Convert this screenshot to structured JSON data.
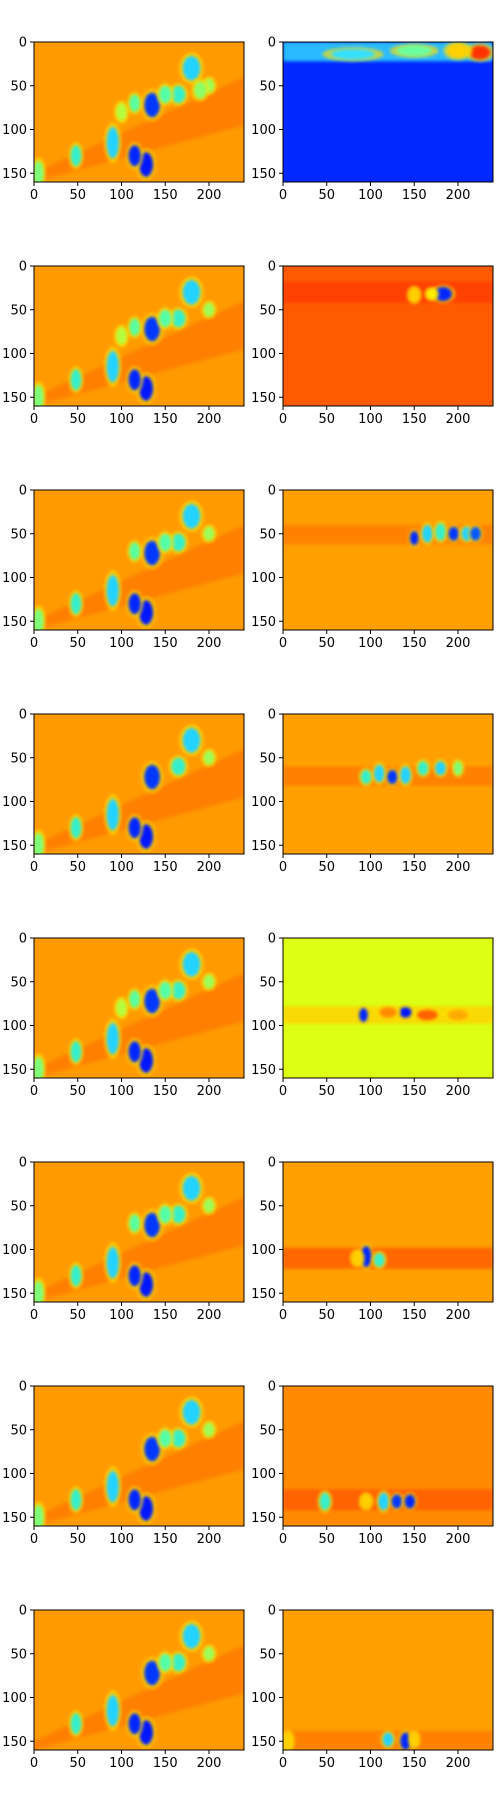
{
  "figure": {
    "layout": "8 rows x 2 columns of heatmap subplots",
    "colormap": "jet",
    "note_colors": {
      "background_orange": "#ff9a00",
      "deep_orange": "#ff5a00",
      "yellow_green": "#dcff14",
      "deep_blue": "#0028ff"
    }
  },
  "chart_data": [
    {
      "type": "heatmap",
      "panel": "r1c1",
      "xlim": [
        0,
        240
      ],
      "ylim": [
        160,
        0
      ],
      "xticks": [
        0,
        50,
        100,
        150,
        200
      ],
      "yticks": [
        0,
        50,
        100,
        150
      ],
      "bg": "#ff9a00",
      "blobs": [
        [
          180,
          30,
          10,
          14,
          "#23d3ff"
        ],
        [
          135,
          72,
          9,
          14,
          "#0038ff"
        ],
        [
          128,
          140,
          8,
          14,
          "#0018ff"
        ],
        [
          115,
          130,
          7,
          12,
          "#0028ff"
        ],
        [
          90,
          115,
          7,
          18,
          "#23d3ff"
        ],
        [
          48,
          130,
          6,
          12,
          "#35f0cc"
        ],
        [
          5,
          150,
          6,
          14,
          "#7dff7a"
        ],
        [
          165,
          60,
          8,
          10,
          "#35f0cc"
        ],
        [
          150,
          60,
          7,
          10,
          "#55ffa8"
        ],
        [
          200,
          50,
          6,
          8,
          "#9bff5a"
        ],
        [
          115,
          70,
          6,
          10,
          "#56ffa0"
        ],
        [
          100,
          80,
          6,
          10,
          "#b6ff40"
        ],
        [
          190,
          55,
          7,
          10,
          "#8aff6a"
        ]
      ]
    },
    {
      "type": "heatmap",
      "panel": "r1c2",
      "xlim": [
        0,
        240
      ],
      "ylim": [
        160,
        0
      ],
      "xticks": [
        0,
        50,
        100,
        150,
        200
      ],
      "yticks": [
        0,
        50,
        100,
        150
      ],
      "bg": "#0028ff",
      "band": {
        "y0": 0,
        "y1": 22,
        "color": "#35e0ff"
      },
      "blobs": [
        [
          225,
          12,
          12,
          8,
          "#ff3000"
        ],
        [
          200,
          10,
          12,
          8,
          "#ffd000"
        ],
        [
          150,
          10,
          20,
          6,
          "#6affa0"
        ],
        [
          80,
          14,
          25,
          6,
          "#35e0ff"
        ]
      ]
    },
    {
      "type": "heatmap",
      "panel": "r2c1",
      "xlim": [
        0,
        240
      ],
      "ylim": [
        160,
        0
      ],
      "xticks": [
        0,
        50,
        100,
        150,
        200
      ],
      "yticks": [
        0,
        50,
        100,
        150
      ],
      "bg": "#ff9a00",
      "blobs": [
        [
          180,
          30,
          10,
          14,
          "#23d3ff"
        ],
        [
          135,
          72,
          9,
          14,
          "#0038ff"
        ],
        [
          128,
          140,
          8,
          14,
          "#0018ff"
        ],
        [
          115,
          130,
          7,
          12,
          "#0028ff"
        ],
        [
          90,
          115,
          7,
          18,
          "#23d3ff"
        ],
        [
          48,
          130,
          6,
          12,
          "#35f0cc"
        ],
        [
          5,
          150,
          6,
          14,
          "#7dff7a"
        ],
        [
          165,
          60,
          8,
          10,
          "#35f0cc"
        ],
        [
          150,
          60,
          7,
          10,
          "#55ffa8"
        ],
        [
          200,
          50,
          6,
          8,
          "#9bff5a"
        ],
        [
          115,
          70,
          6,
          10,
          "#56ffa0"
        ],
        [
          100,
          80,
          6,
          10,
          "#b6ff40"
        ]
      ]
    },
    {
      "type": "heatmap",
      "panel": "r2c2",
      "xlim": [
        0,
        240
      ],
      "ylim": [
        160,
        0
      ],
      "xticks": [
        0,
        50,
        100,
        150,
        200
      ],
      "yticks": [
        0,
        50,
        100,
        150
      ],
      "bg": "#ff5a00",
      "band": {
        "y0": 18,
        "y1": 42,
        "color": "#ff3a00"
      },
      "blobs": [
        [
          183,
          32,
          10,
          8,
          "#0028ff"
        ],
        [
          150,
          33,
          6,
          8,
          "#ffd000"
        ],
        [
          170,
          32,
          6,
          6,
          "#ffef00"
        ]
      ]
    },
    {
      "type": "heatmap",
      "panel": "r3c1",
      "xlim": [
        0,
        240
      ],
      "ylim": [
        160,
        0
      ],
      "xticks": [
        0,
        50,
        100,
        150,
        200
      ],
      "yticks": [
        0,
        50,
        100,
        150
      ],
      "bg": "#ff9a00",
      "blobs": [
        [
          180,
          30,
          10,
          14,
          "#23d3ff"
        ],
        [
          135,
          72,
          9,
          14,
          "#0038ff"
        ],
        [
          128,
          140,
          8,
          14,
          "#0018ff"
        ],
        [
          115,
          130,
          7,
          12,
          "#0028ff"
        ],
        [
          90,
          115,
          7,
          18,
          "#23d3ff"
        ],
        [
          48,
          130,
          6,
          12,
          "#35f0cc"
        ],
        [
          5,
          150,
          6,
          14,
          "#7dff7a"
        ],
        [
          165,
          60,
          8,
          10,
          "#35f0cc"
        ],
        [
          150,
          60,
          7,
          10,
          "#55ffa8"
        ],
        [
          200,
          50,
          6,
          8,
          "#9bff5a"
        ],
        [
          115,
          70,
          6,
          10,
          "#56ffa0"
        ]
      ]
    },
    {
      "type": "heatmap",
      "panel": "r3c2",
      "xlim": [
        0,
        240
      ],
      "ylim": [
        160,
        0
      ],
      "xticks": [
        0,
        50,
        100,
        150,
        200
      ],
      "yticks": [
        0,
        50,
        100,
        150
      ],
      "bg": "#ffa000",
      "band": {
        "y0": 40,
        "y1": 62,
        "color": "#ff7a00"
      },
      "blobs": [
        [
          150,
          55,
          5,
          8,
          "#0028ff"
        ],
        [
          165,
          50,
          6,
          10,
          "#23d3ff"
        ],
        [
          180,
          48,
          6,
          10,
          "#35f0cc"
        ],
        [
          195,
          50,
          6,
          8,
          "#0038ff"
        ],
        [
          210,
          50,
          6,
          8,
          "#23d3ff"
        ],
        [
          220,
          50,
          6,
          8,
          "#0058ff"
        ]
      ]
    },
    {
      "type": "heatmap",
      "panel": "r4c1",
      "xlim": [
        0,
        240
      ],
      "ylim": [
        160,
        0
      ],
      "xticks": [
        0,
        50,
        100,
        150,
        200
      ],
      "yticks": [
        0,
        50,
        100,
        150
      ],
      "bg": "#ff9a00",
      "blobs": [
        [
          180,
          30,
          10,
          14,
          "#23d3ff"
        ],
        [
          135,
          72,
          9,
          14,
          "#0038ff"
        ],
        [
          128,
          140,
          8,
          14,
          "#0018ff"
        ],
        [
          115,
          130,
          7,
          12,
          "#0028ff"
        ],
        [
          90,
          115,
          7,
          18,
          "#23d3ff"
        ],
        [
          48,
          130,
          6,
          12,
          "#35f0cc"
        ],
        [
          5,
          150,
          6,
          14,
          "#7dff7a"
        ],
        [
          165,
          60,
          8,
          10,
          "#35f0cc"
        ],
        [
          200,
          50,
          6,
          8,
          "#9bff5a"
        ]
      ]
    },
    {
      "type": "heatmap",
      "panel": "r4c2",
      "xlim": [
        0,
        240
      ],
      "ylim": [
        160,
        0
      ],
      "xticks": [
        0,
        50,
        100,
        150,
        200
      ],
      "yticks": [
        0,
        50,
        100,
        150
      ],
      "bg": "#ffa000",
      "band": {
        "y0": 60,
        "y1": 82,
        "color": "#ff7a00"
      },
      "blobs": [
        [
          95,
          72,
          6,
          8,
          "#35f0cc"
        ],
        [
          110,
          68,
          6,
          10,
          "#23d3ff"
        ],
        [
          125,
          72,
          6,
          8,
          "#0038ff"
        ],
        [
          140,
          70,
          6,
          10,
          "#23d3ff"
        ],
        [
          160,
          62,
          6,
          8,
          "#35f0cc"
        ],
        [
          180,
          62,
          6,
          8,
          "#23d3ff"
        ],
        [
          200,
          62,
          5,
          8,
          "#7dff7a"
        ]
      ]
    },
    {
      "type": "heatmap",
      "panel": "r5c1",
      "xlim": [
        0,
        240
      ],
      "ylim": [
        160,
        0
      ],
      "xticks": [
        0,
        50,
        100,
        150,
        200
      ],
      "yticks": [
        0,
        50,
        100,
        150
      ],
      "bg": "#ff9a00",
      "blobs": [
        [
          180,
          30,
          10,
          14,
          "#23d3ff"
        ],
        [
          135,
          72,
          9,
          14,
          "#0038ff"
        ],
        [
          128,
          140,
          8,
          14,
          "#0018ff"
        ],
        [
          115,
          130,
          7,
          12,
          "#0028ff"
        ],
        [
          90,
          115,
          7,
          18,
          "#23d3ff"
        ],
        [
          48,
          130,
          6,
          12,
          "#35f0cc"
        ],
        [
          5,
          150,
          6,
          14,
          "#7dff7a"
        ],
        [
          165,
          60,
          8,
          10,
          "#35f0cc"
        ],
        [
          150,
          60,
          7,
          10,
          "#55ffa8"
        ],
        [
          200,
          50,
          6,
          8,
          "#9bff5a"
        ],
        [
          115,
          70,
          6,
          10,
          "#56ffa0"
        ],
        [
          100,
          80,
          6,
          10,
          "#b6ff40"
        ]
      ]
    },
    {
      "type": "heatmap",
      "panel": "r5c2",
      "xlim": [
        0,
        240
      ],
      "ylim": [
        160,
        0
      ],
      "xticks": [
        0,
        50,
        100,
        150,
        200
      ],
      "yticks": [
        0,
        50,
        100,
        150
      ],
      "bg": "#dcff14",
      "band": {
        "y0": 78,
        "y1": 98,
        "color": "#ffd000"
      },
      "blobs": [
        [
          92,
          88,
          5,
          8,
          "#0028ff"
        ],
        [
          140,
          85,
          7,
          6,
          "#0018ff"
        ],
        [
          120,
          85,
          10,
          6,
          "#ff8a00"
        ],
        [
          165,
          88,
          12,
          6,
          "#ff6000"
        ],
        [
          200,
          88,
          12,
          6,
          "#ffaa00"
        ]
      ]
    },
    {
      "type": "heatmap",
      "panel": "r6c1",
      "xlim": [
        0,
        240
      ],
      "ylim": [
        160,
        0
      ],
      "xticks": [
        0,
        50,
        100,
        150,
        200
      ],
      "yticks": [
        0,
        50,
        100,
        150
      ],
      "bg": "#ff9a00",
      "blobs": [
        [
          180,
          30,
          10,
          14,
          "#23d3ff"
        ],
        [
          135,
          72,
          9,
          14,
          "#0038ff"
        ],
        [
          128,
          140,
          8,
          14,
          "#0018ff"
        ],
        [
          115,
          130,
          7,
          12,
          "#0028ff"
        ],
        [
          90,
          115,
          7,
          18,
          "#23d3ff"
        ],
        [
          48,
          130,
          6,
          12,
          "#35f0cc"
        ],
        [
          5,
          150,
          6,
          14,
          "#7dff7a"
        ],
        [
          165,
          60,
          8,
          10,
          "#35f0cc"
        ],
        [
          150,
          60,
          7,
          10,
          "#55ffa8"
        ],
        [
          200,
          50,
          6,
          8,
          "#9bff5a"
        ],
        [
          115,
          70,
          6,
          10,
          "#56ffa0"
        ]
      ]
    },
    {
      "type": "heatmap",
      "panel": "r6c2",
      "xlim": [
        0,
        240
      ],
      "ylim": [
        160,
        0
      ],
      "xticks": [
        0,
        50,
        100,
        150,
        200
      ],
      "yticks": [
        0,
        50,
        100,
        150
      ],
      "bg": "#ffa000",
      "band": {
        "y0": 98,
        "y1": 122,
        "color": "#ff5a00"
      },
      "blobs": [
        [
          95,
          108,
          6,
          12,
          "#0028ff"
        ],
        [
          110,
          112,
          6,
          8,
          "#35f0cc"
        ],
        [
          85,
          110,
          6,
          8,
          "#ffd000"
        ]
      ]
    },
    {
      "type": "heatmap",
      "panel": "r7c1",
      "xlim": [
        0,
        240
      ],
      "ylim": [
        160,
        0
      ],
      "xticks": [
        0,
        50,
        100,
        150,
        200
      ],
      "yticks": [
        0,
        50,
        100,
        150
      ],
      "bg": "#ff9a00",
      "blobs": [
        [
          180,
          30,
          10,
          14,
          "#23d3ff"
        ],
        [
          135,
          72,
          9,
          14,
          "#0038ff"
        ],
        [
          128,
          140,
          8,
          14,
          "#0018ff"
        ],
        [
          115,
          130,
          7,
          12,
          "#0028ff"
        ],
        [
          90,
          115,
          7,
          18,
          "#23d3ff"
        ],
        [
          48,
          130,
          6,
          12,
          "#35f0cc"
        ],
        [
          5,
          150,
          6,
          14,
          "#7dff7a"
        ],
        [
          165,
          60,
          8,
          10,
          "#35f0cc"
        ],
        [
          150,
          60,
          7,
          10,
          "#55ffa8"
        ],
        [
          200,
          50,
          6,
          8,
          "#9bff5a"
        ]
      ]
    },
    {
      "type": "heatmap",
      "panel": "r7c2",
      "xlim": [
        0,
        240
      ],
      "ylim": [
        160,
        0
      ],
      "xticks": [
        0,
        50,
        100,
        150,
        200
      ],
      "yticks": [
        0,
        50,
        100,
        150
      ],
      "bg": "#ff8a00",
      "band": {
        "y0": 118,
        "y1": 142,
        "color": "#ff5a00"
      },
      "blobs": [
        [
          48,
          132,
          6,
          10,
          "#35f0cc"
        ],
        [
          95,
          132,
          6,
          8,
          "#ffd000"
        ],
        [
          115,
          132,
          6,
          10,
          "#23d3ff"
        ],
        [
          130,
          132,
          6,
          8,
          "#0038ff"
        ],
        [
          145,
          132,
          6,
          8,
          "#0028ff"
        ]
      ]
    },
    {
      "type": "heatmap",
      "panel": "r8c1",
      "xlim": [
        0,
        240
      ],
      "ylim": [
        160,
        0
      ],
      "xticks": [
        0,
        50,
        100,
        150,
        200
      ],
      "yticks": [
        0,
        50,
        100,
        150
      ],
      "bg": "#ff9a00",
      "blobs": [
        [
          180,
          30,
          10,
          14,
          "#23d3ff"
        ],
        [
          135,
          72,
          9,
          14,
          "#0038ff"
        ],
        [
          128,
          140,
          8,
          14,
          "#0018ff"
        ],
        [
          115,
          130,
          7,
          12,
          "#0028ff"
        ],
        [
          90,
          115,
          7,
          18,
          "#23d3ff"
        ],
        [
          48,
          130,
          6,
          12,
          "#35f0cc"
        ],
        [
          165,
          60,
          8,
          10,
          "#35f0cc"
        ],
        [
          150,
          60,
          7,
          10,
          "#55ffa8"
        ],
        [
          200,
          50,
          6,
          8,
          "#9bff5a"
        ]
      ]
    },
    {
      "type": "heatmap",
      "panel": "r8c2",
      "xlim": [
        0,
        240
      ],
      "ylim": [
        160,
        0
      ],
      "xticks": [
        0,
        50,
        100,
        150,
        200
      ],
      "yticks": [
        0,
        50,
        100,
        150
      ],
      "bg": "#ffa000",
      "band": {
        "y0": 138,
        "y1": 160,
        "color": "#ff7a00"
      },
      "blobs": [
        [
          5,
          150,
          6,
          10,
          "#ffd000"
        ],
        [
          120,
          148,
          6,
          8,
          "#23d3ff"
        ],
        [
          140,
          150,
          6,
          10,
          "#0028ff"
        ],
        [
          150,
          148,
          5,
          8,
          "#ffd000"
        ]
      ]
    }
  ]
}
